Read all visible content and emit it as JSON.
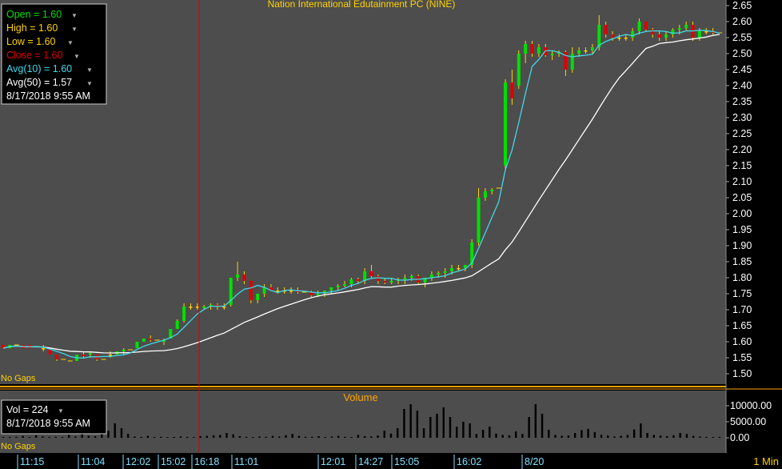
{
  "colors": {
    "panel_bg": "#4d4d4d",
    "axis_bg": "#000000",
    "up": "#00e000",
    "down": "#e00000",
    "title": "#ffd200",
    "avg10": "#40d8e8",
    "avg50": "#ffffff",
    "cursor": "#e00000",
    "separator": "#ffa500",
    "axis_text": "#ffffff",
    "time_text": "#80e0ff"
  },
  "price_panel": {
    "title": "Nation International Edutainment PC (NINE)",
    "no_gaps": "No Gaps",
    "legend": {
      "open": "Open = 1.60",
      "high": "High = 1.60",
      "low": "Low = 1.60",
      "close": "Close = 1.60",
      "avg10": "Avg(10) = 1.60",
      "avg50": "Avg(50) = 1.57",
      "datetime": "8/17/2018 9:55 AM"
    }
  },
  "volume_panel": {
    "title": "Volume",
    "no_gaps": "No Gaps",
    "legend": {
      "vol": "Vol = 224",
      "datetime": "8/17/2018 9:55 AM"
    }
  },
  "time_axis": {
    "labels": [
      "11:15",
      "11:04",
      "12:02",
      "15:02",
      "16:18",
      "11:01",
      "12:01",
      "14:27",
      "15:05",
      "16:02",
      "8/20"
    ],
    "interval": "1 Min"
  },
  "chart_data": [
    {
      "type": "candlestick",
      "title": "Nation International Edutainment PC (NINE)",
      "y_ticks": [
        "2.65",
        "2.60",
        "2.55",
        "2.50",
        "2.45",
        "2.40",
        "2.35",
        "2.30",
        "2.25",
        "2.20",
        "2.15",
        "2.10",
        "2.05",
        "2.00",
        "1.95",
        "1.90",
        "1.85",
        "1.80",
        "1.75",
        "1.70",
        "1.65",
        "1.60",
        "1.55",
        "1.50"
      ],
      "ylim": [
        1.48,
        2.66
      ],
      "candles": [
        [
          1.59,
          1.59,
          1.58,
          1.58
        ],
        [
          1.58,
          1.59,
          1.58,
          1.59
        ],
        [
          1.59,
          1.59,
          1.58,
          1.59
        ],
        [
          1.59,
          1.59,
          1.58,
          1.58
        ],
        [
          1.59,
          1.59,
          1.58,
          1.58
        ],
        [
          1.585,
          1.59,
          1.58,
          1.585
        ],
        [
          1.58,
          1.59,
          1.57,
          1.58
        ],
        [
          1.58,
          1.58,
          1.56,
          1.56
        ],
        [
          1.56,
          1.56,
          1.54,
          1.545
        ],
        [
          1.545,
          1.55,
          1.54,
          1.545
        ],
        [
          1.545,
          1.55,
          1.54,
          1.54
        ],
        [
          1.54,
          1.56,
          1.54,
          1.56
        ],
        [
          1.56,
          1.57,
          1.55,
          1.555
        ],
        [
          1.56,
          1.57,
          1.55,
          1.565
        ],
        [
          1.56,
          1.56,
          1.54,
          1.545
        ],
        [
          1.545,
          1.55,
          1.54,
          1.545
        ],
        [
          1.56,
          1.57,
          1.55,
          1.56
        ],
        [
          1.56,
          1.57,
          1.56,
          1.57
        ],
        [
          1.57,
          1.58,
          1.56,
          1.575
        ],
        [
          1.575,
          1.58,
          1.57,
          1.575
        ],
        [
          1.58,
          1.6,
          1.58,
          1.6
        ],
        [
          1.6,
          1.61,
          1.6,
          1.61
        ],
        [
          1.61,
          1.62,
          1.6,
          1.605
        ],
        [
          1.605,
          1.61,
          1.6,
          1.605
        ],
        [
          1.6,
          1.61,
          1.59,
          1.605
        ],
        [
          1.61,
          1.64,
          1.61,
          1.64
        ],
        [
          1.64,
          1.67,
          1.64,
          1.665
        ],
        [
          1.665,
          1.72,
          1.66,
          1.71
        ],
        [
          1.71,
          1.72,
          1.7,
          1.71
        ],
        [
          1.71,
          1.72,
          1.7,
          1.71
        ],
        [
          1.705,
          1.715,
          1.7,
          1.71
        ],
        [
          1.71,
          1.72,
          1.7,
          1.715
        ],
        [
          1.715,
          1.72,
          1.7,
          1.71
        ],
        [
          1.71,
          1.72,
          1.7,
          1.71
        ],
        [
          1.715,
          1.8,
          1.71,
          1.8
        ],
        [
          1.8,
          1.85,
          1.79,
          1.81
        ],
        [
          1.81,
          1.82,
          1.78,
          1.79
        ],
        [
          1.79,
          1.79,
          1.72,
          1.73
        ],
        [
          1.73,
          1.75,
          1.72,
          1.75
        ],
        [
          1.75,
          1.78,
          1.74,
          1.77
        ],
        [
          1.77,
          1.78,
          1.76,
          1.76
        ],
        [
          1.76,
          1.77,
          1.75,
          1.76
        ],
        [
          1.76,
          1.77,
          1.75,
          1.76
        ],
        [
          1.76,
          1.77,
          1.75,
          1.76
        ],
        [
          1.76,
          1.77,
          1.75,
          1.755
        ],
        [
          1.755,
          1.76,
          1.75,
          1.755
        ],
        [
          1.755,
          1.76,
          1.74,
          1.745
        ],
        [
          1.745,
          1.76,
          1.74,
          1.75
        ],
        [
          1.75,
          1.76,
          1.74,
          1.76
        ],
        [
          1.76,
          1.77,
          1.75,
          1.77
        ],
        [
          1.77,
          1.78,
          1.76,
          1.775
        ],
        [
          1.775,
          1.79,
          1.77,
          1.78
        ],
        [
          1.78,
          1.8,
          1.77,
          1.795
        ],
        [
          1.795,
          1.8,
          1.78,
          1.79
        ],
        [
          1.79,
          1.83,
          1.78,
          1.82
        ],
        [
          1.82,
          1.84,
          1.8,
          1.805
        ],
        [
          1.805,
          1.81,
          1.78,
          1.79
        ],
        [
          1.79,
          1.8,
          1.78,
          1.785
        ],
        [
          1.785,
          1.8,
          1.78,
          1.79
        ],
        [
          1.79,
          1.8,
          1.78,
          1.795
        ],
        [
          1.795,
          1.81,
          1.78,
          1.8
        ],
        [
          1.8,
          1.81,
          1.79,
          1.805
        ],
        [
          1.805,
          1.81,
          1.78,
          1.785
        ],
        [
          1.785,
          1.8,
          1.77,
          1.8
        ],
        [
          1.8,
          1.82,
          1.79,
          1.81
        ],
        [
          1.81,
          1.82,
          1.8,
          1.815
        ],
        [
          1.815,
          1.83,
          1.8,
          1.82
        ],
        [
          1.82,
          1.84,
          1.81,
          1.83
        ],
        [
          1.83,
          1.84,
          1.82,
          1.83
        ],
        [
          1.83,
          1.84,
          1.82,
          1.84
        ],
        [
          1.84,
          1.92,
          1.83,
          1.91
        ],
        [
          1.91,
          2.08,
          1.9,
          2.05
        ],
        [
          2.05,
          2.08,
          2.04,
          2.07
        ],
        [
          2.07,
          2.08,
          2.06,
          2.075
        ],
        [
          2.075,
          2.08,
          2.07,
          2.08
        ],
        [
          2.15,
          2.42,
          2.14,
          2.41
        ],
        [
          2.41,
          2.45,
          2.34,
          2.36
        ],
        [
          2.4,
          2.51,
          2.39,
          2.5
        ],
        [
          2.5,
          2.54,
          2.47,
          2.53
        ],
        [
          2.53,
          2.54,
          2.49,
          2.5
        ],
        [
          2.5,
          2.53,
          2.49,
          2.52
        ],
        [
          2.52,
          2.53,
          2.49,
          2.495
        ],
        [
          2.495,
          2.51,
          2.48,
          2.5
        ],
        [
          2.5,
          2.51,
          2.49,
          2.505
        ],
        [
          2.505,
          2.51,
          2.43,
          2.45
        ],
        [
          2.45,
          2.52,
          2.44,
          2.5
        ],
        [
          2.5,
          2.52,
          2.49,
          2.51
        ],
        [
          2.51,
          2.52,
          2.5,
          2.51
        ],
        [
          2.51,
          2.53,
          2.5,
          2.52
        ],
        [
          2.52,
          2.62,
          2.51,
          2.59
        ],
        [
          2.59,
          2.6,
          2.55,
          2.56
        ],
        [
          2.56,
          2.57,
          2.54,
          2.55
        ],
        [
          2.55,
          2.56,
          2.54,
          2.55
        ],
        [
          2.55,
          2.56,
          2.54,
          2.55
        ],
        [
          2.55,
          2.58,
          2.54,
          2.57
        ],
        [
          2.57,
          2.61,
          2.56,
          2.6
        ],
        [
          2.6,
          2.6,
          2.57,
          2.575
        ],
        [
          2.575,
          2.58,
          2.55,
          2.56
        ],
        [
          2.56,
          2.57,
          2.54,
          2.55
        ],
        [
          2.55,
          2.57,
          2.54,
          2.56
        ],
        [
          2.56,
          2.58,
          2.55,
          2.575
        ],
        [
          2.575,
          2.59,
          2.56,
          2.58
        ],
        [
          2.58,
          2.6,
          2.57,
          2.59
        ],
        [
          2.59,
          2.6,
          2.54,
          2.55
        ],
        [
          2.55,
          2.58,
          2.54,
          2.57
        ],
        [
          2.57,
          2.58,
          2.56,
          2.57
        ],
        [
          2.57,
          2.58,
          2.56,
          2.565
        ],
        [
          2.565,
          2.57,
          2.56,
          2.565
        ]
      ]
    },
    {
      "type": "bar",
      "title": "Volume",
      "y_ticks": [
        "10000.00",
        "5000.00",
        "0.00"
      ],
      "ylim": [
        0,
        13000
      ],
      "values": [
        200,
        150,
        300,
        600,
        200,
        800,
        400,
        200,
        300,
        150,
        900,
        400,
        1200,
        600,
        500,
        3000,
        2200,
        4500,
        3000,
        1200,
        400,
        300,
        600,
        200,
        300,
        200,
        150,
        400,
        300,
        200,
        500,
        600,
        800,
        900,
        1500,
        1100,
        500,
        300,
        200,
        400,
        300,
        600,
        400,
        800,
        1200,
        600,
        300,
        300,
        500,
        200,
        400,
        600,
        300,
        200,
        900,
        500,
        400,
        700,
        2200,
        1300,
        3000,
        9000,
        10500,
        8500,
        3000,
        6500,
        7500,
        9500,
        6500,
        3500,
        5000,
        4500,
        1200,
        2500,
        3500,
        1300,
        900,
        800,
        2000,
        1200,
        6500,
        10500,
        7500,
        2500,
        900,
        600,
        700,
        1500,
        2400,
        2800,
        1800,
        900,
        700,
        400,
        600,
        900,
        2600,
        4500,
        1500,
        900,
        700,
        500,
        800,
        1500,
        1200,
        600,
        400,
        300,
        200,
        300
      ]
    }
  ]
}
